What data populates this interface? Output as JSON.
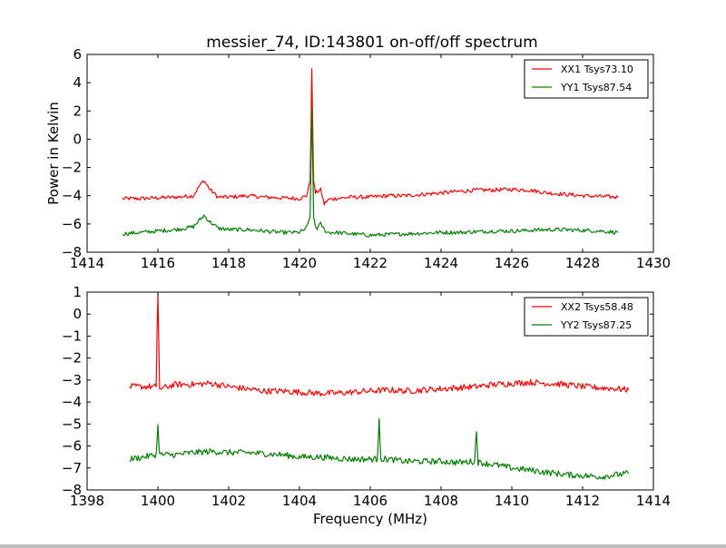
{
  "figure": {
    "title": "messier_74, ID:143801 on-off/off spectrum"
  },
  "chart_data": [
    {
      "type": "line",
      "title": "messier_74, ID:143801 on-off/off spectrum",
      "xlabel": "",
      "ylabel": "Power in Kelvin",
      "xlim": [
        1414,
        1430
      ],
      "ylim": [
        -8,
        6
      ],
      "xticks": [
        "1414",
        "1416",
        "1418",
        "1420",
        "1422",
        "1424",
        "1426",
        "1428",
        "1430"
      ],
      "xtick_values": [
        1414,
        1416,
        1418,
        1420,
        1422,
        1424,
        1426,
        1428,
        1430
      ],
      "yticks": [
        "6",
        "4",
        "2",
        "0",
        "−2",
        "−4",
        "−6",
        "−8"
      ],
      "ytick_values": [
        6,
        4,
        2,
        0,
        -2,
        -4,
        -6,
        -8
      ],
      "grid": false,
      "legend_position": "top-right",
      "series": [
        {
          "name": "XX1 Tsys73.10",
          "color": "#ff0000",
          "x": [
            1415.0,
            1415.5,
            1416.0,
            1416.5,
            1417.0,
            1417.15,
            1417.3,
            1417.45,
            1417.7,
            1418.0,
            1418.5,
            1419.0,
            1419.5,
            1420.0,
            1420.2,
            1420.3,
            1420.35,
            1420.4,
            1420.45,
            1420.5,
            1420.6,
            1420.7,
            1420.8,
            1421.0,
            1421.5,
            1422.0,
            1422.5,
            1423.0,
            1423.5,
            1424.0,
            1424.5,
            1425.0,
            1425.5,
            1426.0,
            1426.5,
            1427.0,
            1427.5,
            1428.0,
            1428.5,
            1429.0
          ],
          "y": [
            -4.2,
            -4.2,
            -4.15,
            -4.1,
            -4.0,
            -3.4,
            -2.9,
            -3.5,
            -4.1,
            -4.1,
            -4.0,
            -4.1,
            -4.15,
            -4.2,
            -4.0,
            -3.0,
            5.0,
            -3.0,
            -3.8,
            -3.7,
            -3.6,
            -4.6,
            -4.3,
            -4.2,
            -4.1,
            -4.1,
            -4.0,
            -4.0,
            -3.9,
            -3.8,
            -3.7,
            -3.6,
            -3.6,
            -3.55,
            -3.6,
            -3.8,
            -3.9,
            -4.0,
            -4.05,
            -4.1
          ]
        },
        {
          "name": "YY1 Tsys87.54",
          "color": "#008000",
          "x": [
            1415.0,
            1415.5,
            1416.0,
            1416.5,
            1417.0,
            1417.15,
            1417.3,
            1417.45,
            1417.7,
            1418.0,
            1418.5,
            1419.0,
            1419.5,
            1420.0,
            1420.2,
            1420.3,
            1420.35,
            1420.4,
            1420.45,
            1420.5,
            1420.6,
            1420.7,
            1420.8,
            1421.0,
            1421.5,
            1422.0,
            1422.5,
            1423.0,
            1423.5,
            1424.0,
            1424.5,
            1425.0,
            1425.5,
            1426.0,
            1426.5,
            1427.0,
            1427.5,
            1428.0,
            1428.5,
            1429.0
          ],
          "y": [
            -6.7,
            -6.6,
            -6.5,
            -6.4,
            -6.2,
            -5.8,
            -5.4,
            -5.8,
            -6.3,
            -6.4,
            -6.4,
            -6.5,
            -6.6,
            -6.6,
            -6.3,
            -5.5,
            2.2,
            -5.5,
            -6.2,
            -6.3,
            -6.0,
            -6.4,
            -6.6,
            -6.6,
            -6.7,
            -6.8,
            -6.75,
            -6.7,
            -6.65,
            -6.6,
            -6.6,
            -6.55,
            -6.5,
            -6.5,
            -6.45,
            -6.4,
            -6.4,
            -6.45,
            -6.5,
            -6.6
          ]
        }
      ]
    },
    {
      "type": "line",
      "title": "",
      "xlabel": "Frequency (MHz)",
      "ylabel": "",
      "xlim": [
        1398,
        1414
      ],
      "ylim": [
        -8,
        1
      ],
      "xticks": [
        "1398",
        "1400",
        "1402",
        "1404",
        "1406",
        "1408",
        "1410",
        "1412",
        "1414"
      ],
      "xtick_values": [
        1398,
        1400,
        1402,
        1404,
        1406,
        1408,
        1410,
        1412,
        1414
      ],
      "yticks": [
        "1",
        "0",
        "−1",
        "−2",
        "−3",
        "−4",
        "−5",
        "−6",
        "−7",
        "−8"
      ],
      "ytick_values": [
        1,
        0,
        -1,
        -2,
        -3,
        -4,
        -5,
        -6,
        -7,
        -8
      ],
      "grid": false,
      "legend_position": "top-right",
      "series": [
        {
          "name": "XX2 Tsys58.48",
          "color": "#ff0000",
          "x": [
            1399.2,
            1399.6,
            1399.95,
            1400.0,
            1400.05,
            1400.5,
            1401.0,
            1401.5,
            1402.0,
            1402.5,
            1403.0,
            1403.5,
            1404.0,
            1404.5,
            1405.0,
            1405.5,
            1406.0,
            1406.5,
            1407.0,
            1407.5,
            1408.0,
            1408.5,
            1409.0,
            1409.5,
            1410.0,
            1410.5,
            1411.0,
            1411.5,
            1412.0,
            1412.5,
            1413.0,
            1413.3
          ],
          "y": [
            -3.3,
            -3.3,
            -3.3,
            0.9,
            -3.4,
            -3.2,
            -3.2,
            -3.15,
            -3.3,
            -3.4,
            -3.5,
            -3.5,
            -3.55,
            -3.6,
            -3.6,
            -3.55,
            -3.5,
            -3.45,
            -3.5,
            -3.45,
            -3.4,
            -3.35,
            -3.3,
            -3.2,
            -3.15,
            -3.1,
            -3.15,
            -3.2,
            -3.3,
            -3.35,
            -3.4,
            -3.45
          ]
        },
        {
          "name": "YY2 Tsys87.25",
          "color": "#008000",
          "x": [
            1399.2,
            1399.6,
            1399.95,
            1400.0,
            1400.05,
            1400.5,
            1401.0,
            1401.5,
            1402.0,
            1402.5,
            1403.0,
            1403.5,
            1404.0,
            1404.5,
            1405.0,
            1405.5,
            1406.0,
            1406.2,
            1406.25,
            1406.3,
            1406.5,
            1407.0,
            1407.5,
            1408.0,
            1408.5,
            1408.95,
            1409.0,
            1409.05,
            1409.5,
            1410.0,
            1410.5,
            1411.0,
            1411.5,
            1412.0,
            1412.5,
            1413.0,
            1413.3
          ],
          "y": [
            -6.6,
            -6.5,
            -6.4,
            -5.1,
            -6.4,
            -6.4,
            -6.3,
            -6.25,
            -6.3,
            -6.3,
            -6.35,
            -6.4,
            -6.5,
            -6.5,
            -6.55,
            -6.6,
            -6.6,
            -6.6,
            -4.75,
            -6.6,
            -6.6,
            -6.7,
            -6.7,
            -6.7,
            -6.75,
            -6.7,
            -5.3,
            -6.75,
            -6.85,
            -7.0,
            -7.1,
            -7.2,
            -7.3,
            -7.35,
            -7.4,
            -7.3,
            -7.25
          ]
        }
      ]
    }
  ]
}
